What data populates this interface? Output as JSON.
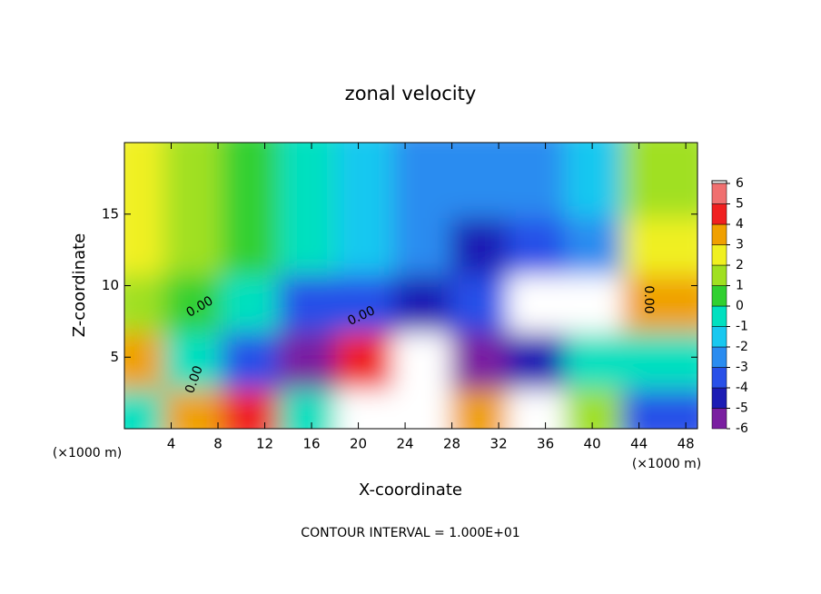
{
  "chart_data": {
    "type": "heatmap",
    "title": "zonal velocity",
    "x_label": "X-coordinate",
    "y_label": "Z-coordinate",
    "x_unit": "(×1000 m)",
    "y_unit": "(×1000 m)",
    "footer": "CONTOUR INTERVAL = 1.000E+01",
    "contour_labels": [
      "0.00",
      "0.00",
      "0.00",
      "0.00"
    ],
    "xlim": [
      0,
      49
    ],
    "ylim": [
      0,
      20
    ],
    "xticks": [
      4,
      8,
      12,
      16,
      20,
      24,
      28,
      32,
      36,
      40,
      44,
      48
    ],
    "yticks": [
      5,
      10,
      15
    ],
    "x": [
      2.45,
      7.35,
      12.25,
      17.15,
      22.05,
      26.95,
      31.85,
      36.75,
      41.65,
      46.55
    ],
    "y": [
      2,
      6,
      10,
      14,
      18
    ],
    "z": [
      [
        0,
        4,
        5,
        0,
        7,
        7,
        4,
        7,
        2,
        -3
      ],
      [
        4,
        0,
        -3,
        -5,
        5,
        7,
        -5,
        -4,
        0,
        0
      ],
      [
        2,
        1,
        0,
        -3,
        -3,
        -4,
        -3,
        7,
        7,
        4
      ],
      [
        3,
        2,
        1,
        0,
        -1,
        -2,
        -4,
        -3,
        -2,
        3
      ],
      [
        3,
        2,
        1,
        0,
        -1,
        -2,
        -2,
        -2,
        -1,
        2
      ]
    ],
    "colorbar": {
      "levels": [
        -6,
        -5,
        -4,
        -3,
        -2,
        -1,
        0,
        1,
        2,
        3,
        4,
        5,
        6
      ],
      "colors": [
        "#7a1fa0",
        "#1c1cb4",
        "#2850e8",
        "#2a8cf0",
        "#18c8f0",
        "#00e0c0",
        "#30d030",
        "#a0e020",
        "#f0f020",
        "#f0a000",
        "#f02020",
        "#f07070"
      ],
      "over_color": "#ffffff",
      "under_color": "#5a0080"
    }
  }
}
